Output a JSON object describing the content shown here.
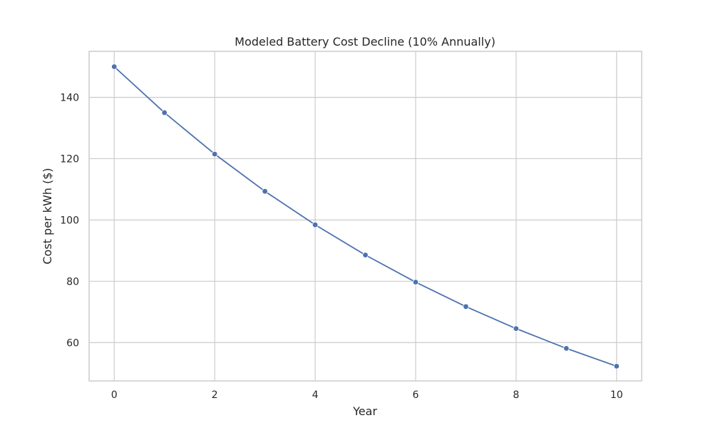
{
  "chart_data": {
    "type": "line",
    "title": "Modeled Battery Cost Decline (10% Annually)",
    "xlabel": "Year",
    "ylabel": "Cost per kWh ($)",
    "xlim": [
      -0.5,
      10.5
    ],
    "ylim": [
      47.5,
      155.0
    ],
    "xticks": [
      0,
      2,
      4,
      6,
      8,
      10
    ],
    "yticks": [
      60,
      80,
      100,
      120,
      140
    ],
    "grid": true,
    "legend": "none",
    "series": [
      {
        "color": "#4c72b0",
        "marker": "circle",
        "x": [
          0,
          1,
          2,
          3,
          4,
          5,
          6,
          7,
          8,
          9,
          10
        ],
        "y": [
          150.0,
          135.0,
          121.5,
          109.35,
          98.42,
          88.57,
          79.72,
          71.74,
          64.57,
          58.11,
          52.3
        ]
      }
    ]
  }
}
